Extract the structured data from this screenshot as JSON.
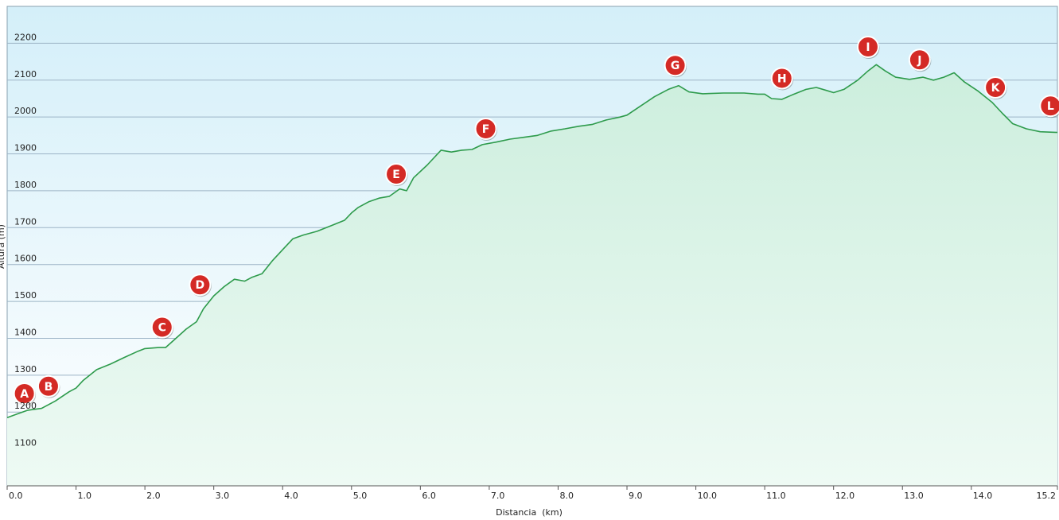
{
  "chart_data": {
    "type": "area",
    "xlabel": "Distancia  (km)",
    "ylabel": "Altura (m)",
    "xlim": [
      0,
      15.25
    ],
    "ylim": [
      1000,
      2300
    ],
    "x_ticks": [
      {
        "value": 0,
        "label": "0.0"
      },
      {
        "value": 1,
        "label": "1.0"
      },
      {
        "value": 2,
        "label": "2.0"
      },
      {
        "value": 3,
        "label": "3.0"
      },
      {
        "value": 4,
        "label": "4.0"
      },
      {
        "value": 5,
        "label": "5.0"
      },
      {
        "value": 6,
        "label": "6.0"
      },
      {
        "value": 7,
        "label": "7.0"
      },
      {
        "value": 8,
        "label": "8.0"
      },
      {
        "value": 9,
        "label": "9.0"
      },
      {
        "value": 10,
        "label": "10.0"
      },
      {
        "value": 11,
        "label": "11.0"
      },
      {
        "value": 12,
        "label": "12.0"
      },
      {
        "value": 13,
        "label": "13.0"
      },
      {
        "value": 14,
        "label": "14.0"
      },
      {
        "value": 15.25,
        "label": "15.2"
      }
    ],
    "y_ticks": [
      {
        "value": 1100,
        "label": "1100"
      },
      {
        "value": 1200,
        "label": "1200"
      },
      {
        "value": 1300,
        "label": "1300"
      },
      {
        "value": 1400,
        "label": "1400"
      },
      {
        "value": 1500,
        "label": "1500"
      },
      {
        "value": 1600,
        "label": "1600"
      },
      {
        "value": 1700,
        "label": "1700"
      },
      {
        "value": 1800,
        "label": "1800"
      },
      {
        "value": 1900,
        "label": "1900"
      },
      {
        "value": 2000,
        "label": "2000"
      },
      {
        "value": 2100,
        "label": "2100"
      },
      {
        "value": 2200,
        "label": "2200"
      }
    ],
    "grid": true,
    "series": [
      {
        "color": "#2e9b4c",
        "points": [
          [
            0.0,
            1185
          ],
          [
            0.15,
            1195
          ],
          [
            0.3,
            1205
          ],
          [
            0.5,
            1210
          ],
          [
            0.7,
            1230
          ],
          [
            0.9,
            1255
          ],
          [
            1.0,
            1265
          ],
          [
            1.1,
            1285
          ],
          [
            1.3,
            1315
          ],
          [
            1.5,
            1330
          ],
          [
            1.7,
            1348
          ],
          [
            1.9,
            1365
          ],
          [
            2.0,
            1372
          ],
          [
            2.2,
            1375
          ],
          [
            2.3,
            1375
          ],
          [
            2.45,
            1400
          ],
          [
            2.6,
            1425
          ],
          [
            2.75,
            1445
          ],
          [
            2.85,
            1480
          ],
          [
            3.0,
            1515
          ],
          [
            3.15,
            1540
          ],
          [
            3.3,
            1560
          ],
          [
            3.45,
            1555
          ],
          [
            3.55,
            1565
          ],
          [
            3.7,
            1575
          ],
          [
            3.85,
            1610
          ],
          [
            4.0,
            1640
          ],
          [
            4.15,
            1670
          ],
          [
            4.3,
            1680
          ],
          [
            4.5,
            1690
          ],
          [
            4.7,
            1705
          ],
          [
            4.9,
            1720
          ],
          [
            5.0,
            1740
          ],
          [
            5.1,
            1755
          ],
          [
            5.25,
            1770
          ],
          [
            5.4,
            1780
          ],
          [
            5.55,
            1785
          ],
          [
            5.7,
            1805
          ],
          [
            5.8,
            1800
          ],
          [
            5.9,
            1835
          ],
          [
            6.1,
            1870
          ],
          [
            6.3,
            1910
          ],
          [
            6.45,
            1905
          ],
          [
            6.6,
            1910
          ],
          [
            6.75,
            1912
          ],
          [
            6.9,
            1925
          ],
          [
            7.1,
            1932
          ],
          [
            7.3,
            1940
          ],
          [
            7.5,
            1945
          ],
          [
            7.7,
            1950
          ],
          [
            7.9,
            1962
          ],
          [
            8.1,
            1968
          ],
          [
            8.3,
            1975
          ],
          [
            8.5,
            1980
          ],
          [
            8.7,
            1992
          ],
          [
            8.9,
            2000
          ],
          [
            9.0,
            2005
          ],
          [
            9.2,
            2030
          ],
          [
            9.4,
            2055
          ],
          [
            9.6,
            2075
          ],
          [
            9.75,
            2085
          ],
          [
            9.9,
            2068
          ],
          [
            10.1,
            2063
          ],
          [
            10.4,
            2065
          ],
          [
            10.7,
            2065
          ],
          [
            10.9,
            2062
          ],
          [
            11.0,
            2062
          ],
          [
            11.1,
            2050
          ],
          [
            11.25,
            2048
          ],
          [
            11.4,
            2060
          ],
          [
            11.6,
            2075
          ],
          [
            11.75,
            2080
          ],
          [
            11.9,
            2072
          ],
          [
            12.0,
            2066
          ],
          [
            12.15,
            2075
          ],
          [
            12.35,
            2100
          ],
          [
            12.5,
            2125
          ],
          [
            12.62,
            2142
          ],
          [
            12.75,
            2125
          ],
          [
            12.9,
            2108
          ],
          [
            13.1,
            2102
          ],
          [
            13.3,
            2108
          ],
          [
            13.45,
            2100
          ],
          [
            13.6,
            2108
          ],
          [
            13.75,
            2120
          ],
          [
            13.9,
            2095
          ],
          [
            14.1,
            2070
          ],
          [
            14.3,
            2040
          ],
          [
            14.45,
            2010
          ],
          [
            14.6,
            1982
          ],
          [
            14.8,
            1968
          ],
          [
            15.0,
            1960
          ],
          [
            15.25,
            1958
          ]
        ]
      }
    ],
    "waypoints": [
      {
        "label": "A",
        "x": 0.25,
        "y": 1250
      },
      {
        "label": "B",
        "x": 0.6,
        "y": 1270
      },
      {
        "label": "C",
        "x": 2.25,
        "y": 1430
      },
      {
        "label": "D",
        "x": 2.8,
        "y": 1545
      },
      {
        "label": "E",
        "x": 5.65,
        "y": 1845
      },
      {
        "label": "F",
        "x": 6.95,
        "y": 1968
      },
      {
        "label": "G",
        "x": 9.7,
        "y": 2140
      },
      {
        "label": "H",
        "x": 11.25,
        "y": 2105
      },
      {
        "label": "I",
        "x": 12.5,
        "y": 2190
      },
      {
        "label": "J",
        "x": 13.25,
        "y": 2155
      },
      {
        "label": "K",
        "x": 14.35,
        "y": 2080
      },
      {
        "label": "L",
        "x": 15.15,
        "y": 2030
      }
    ],
    "colors": {
      "line": "#2e9b4c",
      "marker_fill": "#d42a25",
      "marker_stroke": "#ffffff",
      "bg_top": "#d4eff9",
      "bg_bottom": "#ffffff",
      "area_top": "#cceedd",
      "area_bottom": "#eefaf4",
      "grid": "#9db4c6"
    }
  }
}
